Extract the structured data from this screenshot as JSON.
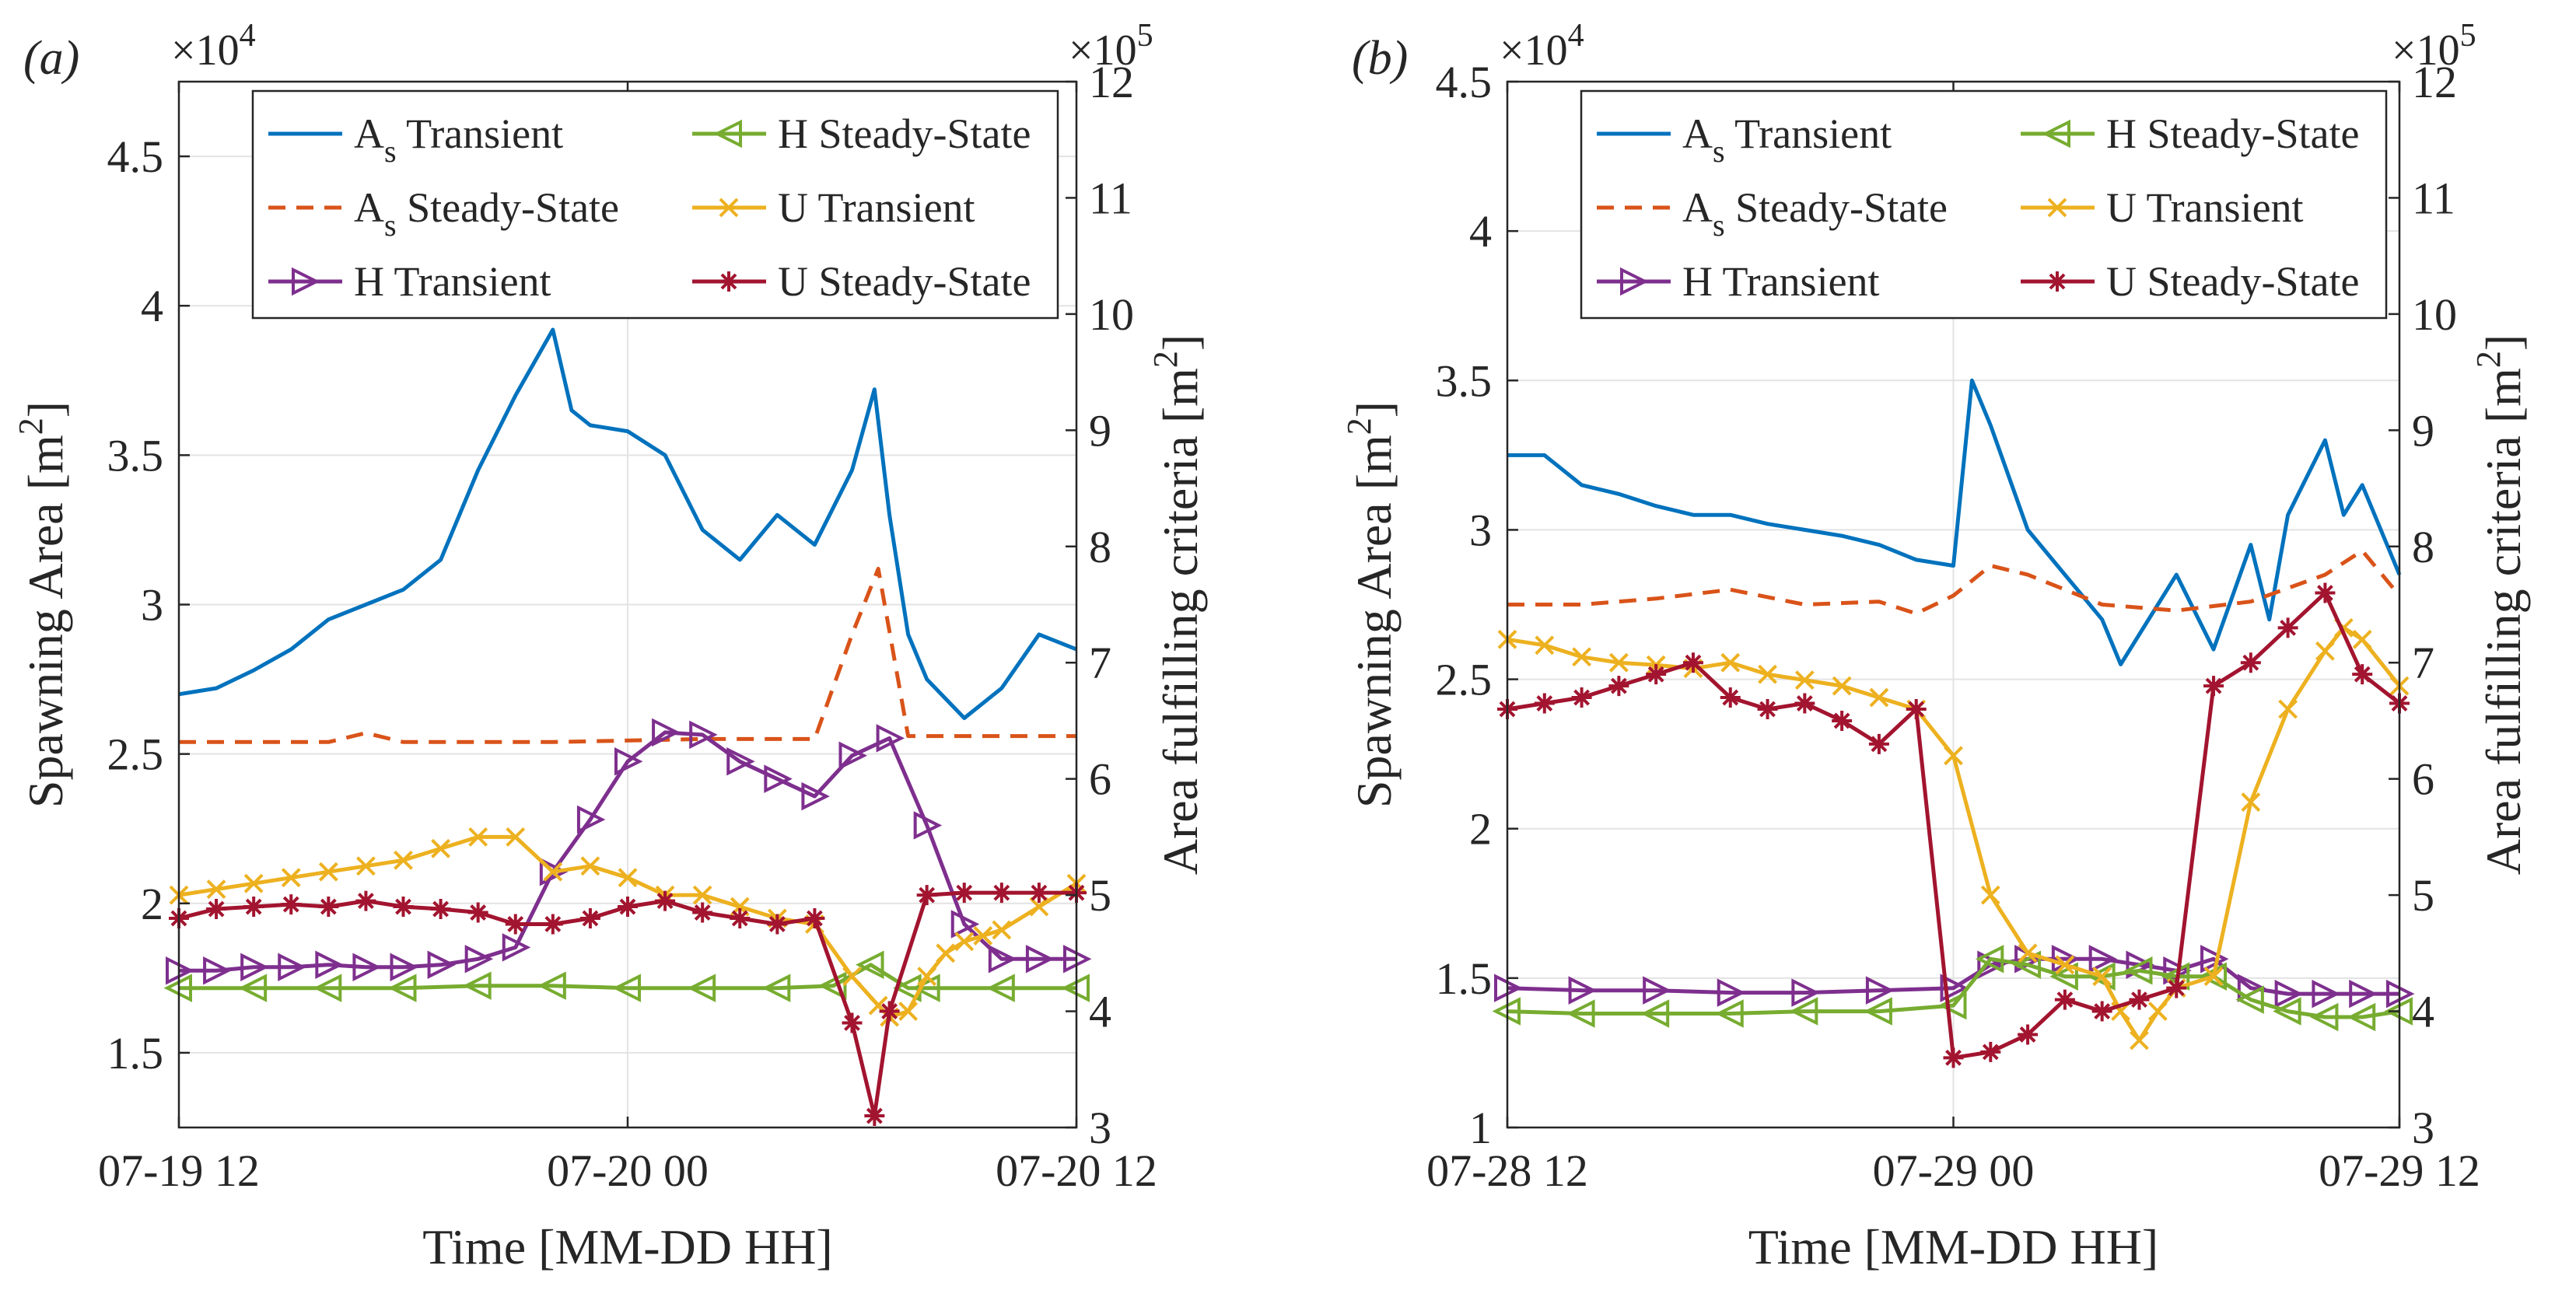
{
  "chart_data": [
    {
      "type": "line",
      "panel_label": "(a)",
      "xlabel": "Time [MM-DD HH]",
      "x_ticks": [
        "07-19 12",
        "07-20 00",
        "07-20 12"
      ],
      "xlim_hours": [
        0,
        24
      ],
      "left_axis": {
        "label": "Spawning Area [m",
        "label_sup": "2",
        "label_end": "]",
        "exponent": "×10",
        "exponent_power": "4",
        "ylim": [
          1.25,
          4.75
        ],
        "ticks": [
          1.5,
          2,
          2.5,
          3,
          3.5,
          4,
          4.5
        ],
        "tick_labels": [
          "1.5",
          "2",
          "2.5",
          "3",
          "3.5",
          "4",
          "4.5"
        ]
      },
      "right_axis": {
        "label": "Area fulfilling criteria [m",
        "label_sup": "2",
        "label_end": "]",
        "exponent": "×10",
        "exponent_power": "5",
        "ylim": [
          3,
          12
        ],
        "ticks": [
          3,
          4,
          5,
          6,
          7,
          8,
          9,
          10,
          11,
          12
        ],
        "tick_labels": [
          "3",
          "4",
          "5",
          "6",
          "7",
          "8",
          "9",
          "10",
          "11",
          "12"
        ]
      },
      "series": [
        {
          "name": "As Transient",
          "label": "A",
          "label_sub": "s",
          "label_rest": " Transient",
          "axis": "left",
          "color": "#0072BD",
          "style": "solid",
          "marker": "none",
          "x": [
            0,
            1,
            2,
            3,
            4,
            5,
            6,
            7,
            8,
            9,
            10,
            10.5,
            11,
            12,
            13,
            14,
            15,
            16,
            17,
            18,
            18.6,
            19,
            19.5,
            20,
            21,
            22,
            23,
            24
          ],
          "y": [
            2.7,
            2.72,
            2.78,
            2.85,
            2.95,
            3.0,
            3.05,
            3.15,
            3.45,
            3.7,
            3.92,
            3.65,
            3.6,
            3.58,
            3.5,
            3.25,
            3.15,
            3.3,
            3.2,
            3.45,
            3.72,
            3.3,
            2.9,
            2.75,
            2.62,
            2.72,
            2.9,
            2.85
          ]
        },
        {
          "name": "As Steady-State",
          "label": "A",
          "label_sub": "s",
          "label_rest": " Steady-State",
          "axis": "left",
          "color": "#D95319",
          "style": "dashed",
          "marker": "none",
          "x": [
            0,
            4,
            5,
            6,
            10,
            14,
            17,
            18,
            18.7,
            19.5,
            20,
            24
          ],
          "y": [
            2.54,
            2.54,
            2.57,
            2.54,
            2.54,
            2.55,
            2.55,
            2.9,
            3.12,
            2.56,
            2.56,
            2.56
          ]
        },
        {
          "name": "H Transient",
          "label": "H Transient",
          "axis": "right",
          "color": "#7E2F8E",
          "style": "solid",
          "marker": "triangle-right",
          "x": [
            0,
            1,
            2,
            3,
            4,
            5,
            6,
            7,
            8,
            9,
            10,
            11,
            12,
            13,
            14,
            15,
            16,
            17,
            18,
            19,
            20,
            21,
            22,
            23,
            24
          ],
          "y": [
            4.35,
            4.35,
            4.38,
            4.38,
            4.4,
            4.38,
            4.38,
            4.4,
            4.45,
            4.55,
            5.2,
            5.65,
            6.15,
            6.4,
            6.38,
            6.15,
            6.0,
            5.85,
            6.2,
            6.35,
            5.6,
            4.75,
            4.45,
            4.45,
            4.45
          ]
        },
        {
          "name": "H Steady-State",
          "label": "H Steady-State",
          "axis": "right",
          "color": "#77AC30",
          "style": "solid",
          "marker": "triangle-left",
          "x": [
            0,
            2,
            4,
            6,
            8,
            10,
            12,
            14,
            16,
            17.5,
            18.5,
            19.5,
            20,
            22,
            24
          ],
          "y": [
            4.2,
            4.2,
            4.2,
            4.2,
            4.22,
            4.22,
            4.2,
            4.2,
            4.2,
            4.22,
            4.4,
            4.2,
            4.2,
            4.2,
            4.2
          ]
        },
        {
          "name": "U Transient",
          "label": "U Transient",
          "axis": "right",
          "color": "#EDB120",
          "style": "solid",
          "marker": "x",
          "x": [
            0,
            1,
            2,
            3,
            4,
            5,
            6,
            7,
            8,
            9,
            10,
            11,
            12,
            13,
            14,
            15,
            16,
            17,
            18,
            18.7,
            19,
            19.5,
            20,
            20.5,
            21,
            21.5,
            22,
            23,
            24
          ],
          "y": [
            5.0,
            5.05,
            5.1,
            5.15,
            5.2,
            5.25,
            5.3,
            5.4,
            5.5,
            5.5,
            5.2,
            5.25,
            5.15,
            5.0,
            5.0,
            4.9,
            4.8,
            4.75,
            4.3,
            4.05,
            3.95,
            4.0,
            4.3,
            4.5,
            4.6,
            4.65,
            4.7,
            4.9,
            5.1
          ]
        },
        {
          "name": "U Steady-State",
          "label": "U Steady-State",
          "axis": "right",
          "color": "#A2142F",
          "style": "solid",
          "marker": "asterisk",
          "x": [
            0,
            1,
            2,
            3,
            4,
            5,
            6,
            7,
            8,
            9,
            10,
            11,
            12,
            13,
            14,
            15,
            16,
            17,
            18,
            18.6,
            19,
            20,
            21,
            22,
            23,
            24
          ],
          "y": [
            4.8,
            4.88,
            4.9,
            4.92,
            4.9,
            4.95,
            4.9,
            4.88,
            4.85,
            4.75,
            4.75,
            4.8,
            4.9,
            4.95,
            4.85,
            4.8,
            4.75,
            4.8,
            3.9,
            3.1,
            4.0,
            5.0,
            5.02,
            5.02,
            5.02,
            5.02
          ]
        }
      ]
    },
    {
      "type": "line",
      "panel_label": "(b)",
      "xlabel": "Time [MM-DD HH]",
      "x_ticks": [
        "07-28 12",
        "07-29 00",
        "07-29 12"
      ],
      "xlim_hours": [
        0,
        24
      ],
      "left_axis": {
        "label": "Spawning Area [m",
        "label_sup": "2",
        "label_end": "]",
        "exponent": "×10",
        "exponent_power": "4",
        "ylim": [
          1,
          4.5
        ],
        "ticks": [
          1,
          1.5,
          2,
          2.5,
          3,
          3.5,
          4,
          4.5
        ],
        "tick_labels": [
          "1",
          "1.5",
          "2",
          "2.5",
          "3",
          "3.5",
          "4",
          "4.5"
        ]
      },
      "right_axis": {
        "label": "Area fulfilling criteria [m",
        "label_sup": "2",
        "label_end": "]",
        "exponent": "×10",
        "exponent_power": "5",
        "ylim": [
          3,
          12
        ],
        "ticks": [
          3,
          4,
          5,
          6,
          7,
          8,
          9,
          10,
          11,
          12
        ],
        "tick_labels": [
          "3",
          "4",
          "5",
          "6",
          "7",
          "8",
          "9",
          "10",
          "11",
          "12"
        ]
      },
      "series": [
        {
          "name": "As Transient",
          "label": "A",
          "label_sub": "s",
          "label_rest": " Transient",
          "axis": "left",
          "color": "#0072BD",
          "style": "solid",
          "marker": "none",
          "x": [
            0,
            1,
            2,
            3,
            4,
            5,
            6,
            7,
            8,
            9,
            10,
            11,
            12,
            12.5,
            13,
            14,
            15,
            16,
            16.5,
            17,
            18,
            19,
            20,
            20.5,
            21,
            22,
            22.5,
            23,
            24
          ],
          "y": [
            3.25,
            3.25,
            3.15,
            3.12,
            3.08,
            3.05,
            3.05,
            3.02,
            3.0,
            2.98,
            2.95,
            2.9,
            2.88,
            3.5,
            3.35,
            3.0,
            2.85,
            2.7,
            2.55,
            2.65,
            2.85,
            2.6,
            2.95,
            2.7,
            3.05,
            3.3,
            3.05,
            3.15,
            2.85
          ]
        },
        {
          "name": "As Steady-State",
          "label": "A",
          "label_sub": "s",
          "label_rest": " Steady-State",
          "axis": "left",
          "color": "#D95319",
          "style": "dashed",
          "marker": "none",
          "x": [
            0,
            2,
            4,
            6,
            8,
            10,
            11,
            12,
            13,
            14,
            15,
            16,
            18,
            20,
            22,
            23,
            24
          ],
          "y": [
            2.75,
            2.75,
            2.77,
            2.8,
            2.75,
            2.76,
            2.72,
            2.78,
            2.88,
            2.85,
            2.8,
            2.75,
            2.73,
            2.76,
            2.85,
            2.93,
            2.78
          ]
        },
        {
          "name": "H Transient",
          "label": "H Transient",
          "axis": "right",
          "color": "#7E2F8E",
          "style": "solid",
          "marker": "triangle-right",
          "x": [
            0,
            2,
            4,
            6,
            8,
            10,
            12,
            13,
            14,
            15,
            16,
            17,
            18,
            19,
            20,
            21,
            22,
            23,
            24
          ],
          "y": [
            4.2,
            4.18,
            4.18,
            4.16,
            4.16,
            4.18,
            4.2,
            4.4,
            4.45,
            4.45,
            4.45,
            4.4,
            4.35,
            4.45,
            4.2,
            4.15,
            4.15,
            4.15,
            4.15
          ]
        },
        {
          "name": "H Steady-State",
          "label": "H Steady-State",
          "axis": "right",
          "color": "#77AC30",
          "style": "solid",
          "marker": "triangle-left",
          "x": [
            0,
            2,
            4,
            6,
            8,
            10,
            12,
            13,
            14,
            15,
            16,
            17,
            18,
            19,
            20,
            21,
            22,
            23,
            24
          ],
          "y": [
            4.0,
            3.98,
            3.98,
            3.98,
            4.0,
            4.0,
            4.05,
            4.45,
            4.4,
            4.3,
            4.3,
            4.35,
            4.3,
            4.3,
            4.1,
            4.0,
            3.95,
            3.95,
            4.0
          ]
        },
        {
          "name": "U Transient",
          "label": "U Transient",
          "axis": "right",
          "color": "#EDB120",
          "style": "solid",
          "marker": "x",
          "x": [
            0,
            1,
            2,
            3,
            4,
            5,
            6,
            7,
            8,
            9,
            10,
            11,
            12,
            13,
            14,
            15,
            16,
            16.5,
            17,
            17.5,
            18,
            19,
            20,
            21,
            22,
            22.5,
            23,
            24
          ],
          "y": [
            7.2,
            7.15,
            7.05,
            7.0,
            6.98,
            6.95,
            7.0,
            6.9,
            6.85,
            6.8,
            6.7,
            6.6,
            6.2,
            5.0,
            4.5,
            4.4,
            4.3,
            4.0,
            3.75,
            4.0,
            4.2,
            4.3,
            5.8,
            6.6,
            7.1,
            7.3,
            7.2,
            6.8
          ]
        },
        {
          "name": "U Steady-State",
          "label": "U Steady-State",
          "axis": "right",
          "color": "#A2142F",
          "style": "solid",
          "marker": "asterisk",
          "x": [
            0,
            1,
            2,
            3,
            4,
            5,
            6,
            7,
            8,
            9,
            10,
            11,
            12,
            13,
            14,
            15,
            16,
            17,
            18,
            19,
            20,
            21,
            22,
            23,
            24
          ],
          "y": [
            6.6,
            6.65,
            6.7,
            6.8,
            6.9,
            7.0,
            6.7,
            6.6,
            6.65,
            6.5,
            6.3,
            6.6,
            3.6,
            3.65,
            3.8,
            4.1,
            4.0,
            4.1,
            4.2,
            6.8,
            7.0,
            7.3,
            7.6,
            6.9,
            6.65
          ]
        }
      ]
    }
  ]
}
